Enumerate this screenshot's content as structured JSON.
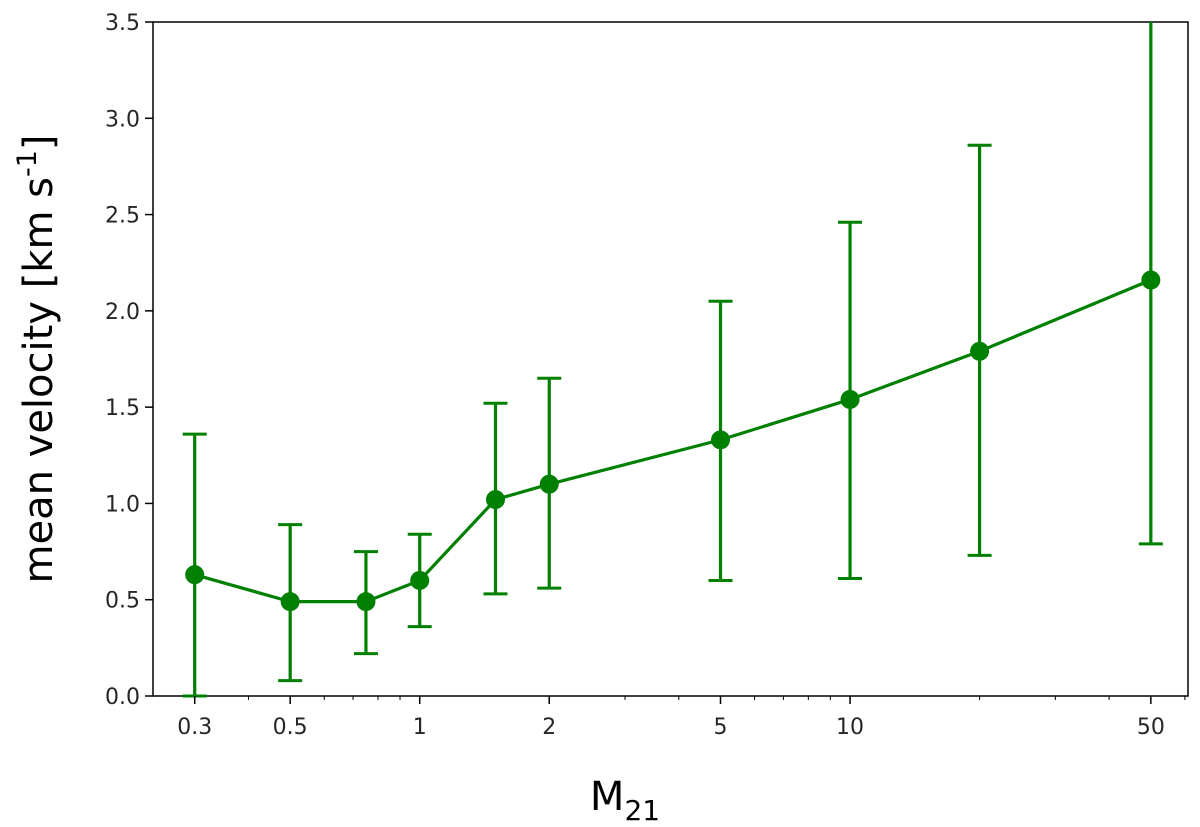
{
  "chart_data": {
    "type": "line",
    "title": "",
    "xlabel": "M",
    "xlabel_sub": "21",
    "ylabel_main": "mean velocity [km s",
    "ylabel_sup": "-1",
    "ylabel_end": "]",
    "x_scale": "log",
    "xlim": [
      0.24,
      61
    ],
    "ylim": [
      0.0,
      3.5
    ],
    "x_ticks": [
      0.3,
      0.5,
      1,
      2,
      5,
      10,
      50
    ],
    "x_tick_labels": [
      "0.3",
      "0.5",
      "1",
      "2",
      "5",
      "10",
      "50"
    ],
    "y_ticks": [
      0.0,
      0.5,
      1.0,
      1.5,
      2.0,
      2.5,
      3.0,
      3.5
    ],
    "y_tick_labels": [
      "0.0",
      "0.5",
      "1.0",
      "1.5",
      "2.0",
      "2.5",
      "3.0",
      "3.5"
    ],
    "grid": false,
    "color": "#008000",
    "series": [
      {
        "x": [
          0.3,
          0.5,
          0.75,
          1,
          1.5,
          2,
          5,
          10,
          20,
          50
        ],
        "y": [
          0.63,
          0.49,
          0.49,
          0.6,
          1.02,
          1.1,
          1.33,
          1.54,
          1.79,
          2.16
        ],
        "yerr_low": [
          0.0,
          0.08,
          0.22,
          0.36,
          0.53,
          0.56,
          0.6,
          0.61,
          0.73,
          0.79
        ],
        "yerr_high": [
          1.36,
          0.89,
          0.75,
          0.84,
          1.52,
          1.65,
          2.05,
          2.46,
          2.86,
          3.5
        ]
      }
    ]
  }
}
